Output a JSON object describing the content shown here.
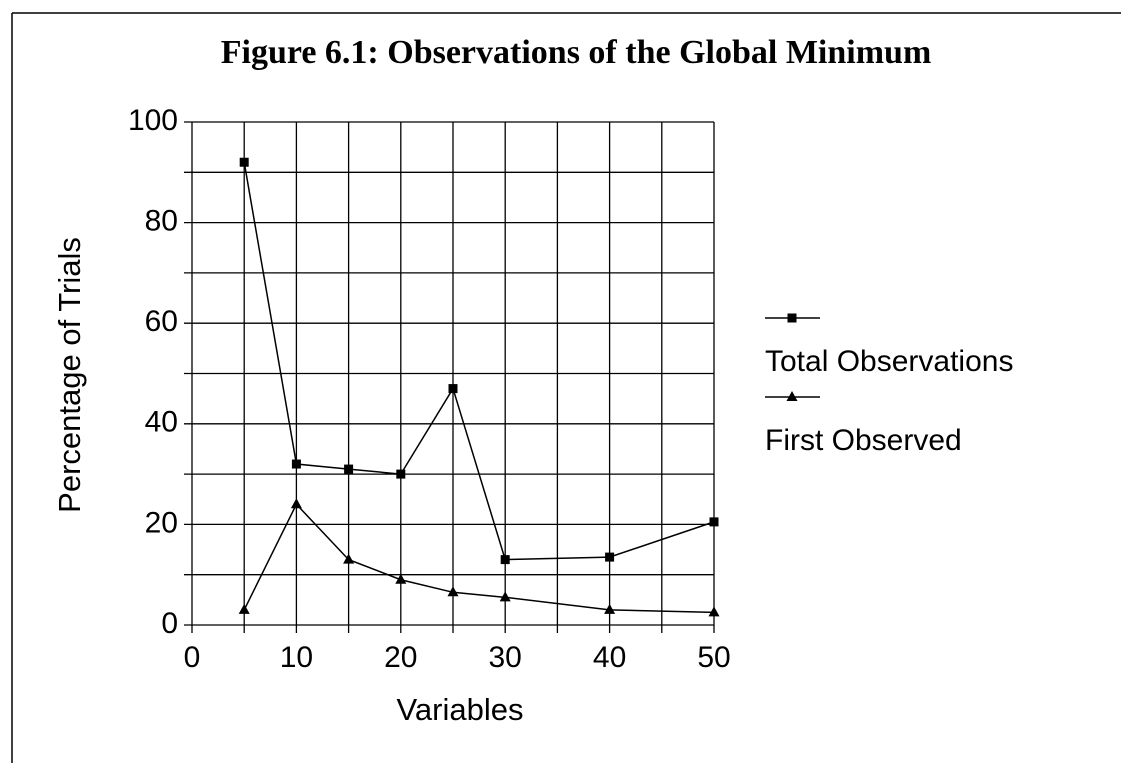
{
  "chart_data": {
    "type": "line",
    "title": "Figure 6.1:  Observations of the Global Minimum",
    "xlabel": "Variables",
    "ylabel": "Percentage of Trials",
    "xlim": [
      0,
      50
    ],
    "xticks": [
      0,
      10,
      20,
      30,
      40,
      50
    ],
    "ylim": [
      0,
      100
    ],
    "yticks": [
      0,
      20,
      40,
      60,
      80,
      100
    ],
    "xgrid": [
      0,
      5,
      10,
      15,
      20,
      25,
      30,
      35,
      40,
      45,
      50
    ],
    "ygrid": [
      0,
      10,
      20,
      30,
      40,
      50,
      60,
      70,
      80,
      90,
      100
    ],
    "grid": true,
    "legend": "right",
    "x": [
      5,
      10,
      15,
      20,
      25,
      30,
      40,
      50
    ],
    "series": [
      {
        "name": "Total Observations",
        "color": "#000000",
        "marker": "square",
        "values": [
          92,
          32,
          31,
          30,
          47,
          13,
          13.5,
          20.5
        ]
      },
      {
        "name": "First Observed",
        "color": "#000000",
        "marker": "triangle",
        "values": [
          3,
          24,
          13,
          9,
          6.5,
          5.5,
          3,
          2.5
        ]
      }
    ]
  }
}
